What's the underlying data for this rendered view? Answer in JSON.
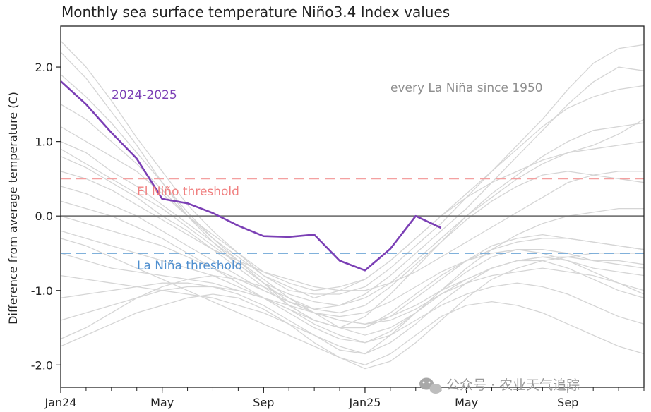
{
  "chart_data": {
    "type": "line",
    "title": "Monthly sea surface temperature Niño3.4 Index values",
    "ylabel": "Difference from average temperature (C)",
    "xlabel": "",
    "x_ticks": [
      "Jan24",
      "May",
      "Sep",
      "Jan25",
      "May",
      "Sep"
    ],
    "x_tick_months": [
      0,
      4,
      8,
      12,
      16,
      20
    ],
    "xlim": [
      0,
      23
    ],
    "ylim": [
      -2.3,
      2.55
    ],
    "y_ticks": [
      2.0,
      1.0,
      0.0,
      -1.0,
      -2.0
    ],
    "y_tick_labels": [
      "2.0",
      "1.0",
      "0.0",
      "-1.0",
      "-2.0"
    ],
    "grid": false,
    "zero_line": {
      "value": 0.0,
      "color": "#7a7a7a"
    },
    "thresholds": [
      {
        "name": "El Niño threshold",
        "value": 0.5,
        "color": "#f4a0a0",
        "text_color": "#f08080"
      },
      {
        "name": "La Niña threshold",
        "value": -0.5,
        "color": "#6fa6d6",
        "text_color": "#4f8fcf"
      }
    ],
    "highlight_series": {
      "name": "2024-2025",
      "color": "#7b3fb5",
      "x": [
        0,
        1,
        2,
        3,
        4,
        5,
        6,
        7,
        8,
        9,
        10,
        11,
        12,
        13,
        14,
        15
      ],
      "values": [
        1.81,
        1.5,
        1.12,
        0.77,
        0.23,
        0.17,
        0.04,
        -0.13,
        -0.27,
        -0.28,
        -0.25,
        -0.6,
        -0.73,
        -0.44,
        0.0,
        -0.16
      ]
    },
    "background_series_label": "every La Niña since 1950",
    "background_series_color": "#d5d5d5",
    "background_series": [
      [
        2.35,
        2.0,
        1.55,
        1.05,
        0.6,
        0.15,
        -0.2,
        -0.5,
        -0.8,
        -1.0,
        -1.05,
        -1.05,
        -0.95,
        -0.7,
        -0.4,
        -0.1,
        0.25,
        0.6,
        0.95,
        1.3,
        1.7,
        2.05,
        2.25,
        2.3
      ],
      [
        2.2,
        1.85,
        1.4,
        0.95,
        0.45,
        0.0,
        -0.35,
        -0.65,
        -0.9,
        -1.15,
        -1.25,
        -1.2,
        -1.05,
        -0.8,
        -0.5,
        -0.2,
        0.1,
        0.45,
        0.8,
        1.15,
        1.5,
        1.8,
        2.0,
        1.95
      ],
      [
        1.9,
        1.6,
        1.25,
        0.85,
        0.45,
        0.05,
        -0.3,
        -0.55,
        -0.8,
        -0.95,
        -1.1,
        -1.0,
        -0.85,
        -0.6,
        -0.3,
        0.0,
        0.3,
        0.6,
        0.9,
        1.2,
        1.45,
        1.6,
        1.7,
        1.75
      ],
      [
        1.5,
        1.3,
        1.0,
        0.7,
        0.35,
        0.0,
        -0.3,
        -0.6,
        -0.9,
        -1.2,
        -1.4,
        -1.5,
        -1.35,
        -1.05,
        -0.7,
        -0.35,
        0.0,
        0.3,
        0.55,
        0.8,
        1.0,
        1.15,
        1.2,
        1.25
      ],
      [
        1.2,
        1.0,
        0.8,
        0.6,
        0.3,
        0.0,
        -0.25,
        -0.5,
        -0.75,
        -0.9,
        -1.0,
        -0.95,
        -0.85,
        -0.6,
        -0.3,
        0.0,
        0.25,
        0.45,
        0.6,
        0.75,
        0.85,
        0.9,
        0.95,
        1.0
      ],
      [
        1.0,
        0.85,
        0.6,
        0.4,
        0.15,
        -0.1,
        -0.35,
        -0.6,
        -0.85,
        -1.1,
        -1.25,
        -1.3,
        -1.2,
        -0.95,
        -0.65,
        -0.35,
        -0.05,
        0.2,
        0.4,
        0.55,
        0.6,
        0.55,
        0.5,
        0.45
      ],
      [
        0.8,
        0.65,
        0.45,
        0.25,
        0.0,
        -0.2,
        -0.45,
        -0.7,
        -0.95,
        -1.2,
        -1.4,
        -1.5,
        -1.5,
        -1.3,
        -1.05,
        -0.8,
        -0.6,
        -0.45,
        -0.35,
        -0.3,
        -0.3,
        -0.35,
        -0.4,
        -0.45
      ],
      [
        0.6,
        0.5,
        0.35,
        0.15,
        -0.05,
        -0.25,
        -0.45,
        -0.6,
        -0.75,
        -0.85,
        -0.95,
        -1.0,
        -1.0,
        -0.9,
        -0.75,
        -0.55,
        -0.35,
        -0.15,
        0.05,
        0.25,
        0.45,
        0.55,
        0.6,
        0.6
      ],
      [
        0.4,
        0.3,
        0.15,
        0.0,
        -0.2,
        -0.4,
        -0.6,
        -0.8,
        -1.0,
        -1.15,
        -1.3,
        -1.4,
        -1.45,
        -1.35,
        -1.2,
        -1.0,
        -0.85,
        -0.7,
        -0.6,
        -0.55,
        -0.6,
        -0.7,
        -0.75,
        -0.8
      ],
      [
        0.2,
        0.1,
        0.0,
        -0.15,
        -0.3,
        -0.5,
        -0.7,
        -0.9,
        -1.1,
        -1.3,
        -1.5,
        -1.65,
        -1.7,
        -1.55,
        -1.3,
        -1.0,
        -0.7,
        -0.45,
        -0.25,
        -0.1,
        0.0,
        0.05,
        0.1,
        0.1
      ],
      [
        0.0,
        -0.1,
        -0.2,
        -0.3,
        -0.4,
        -0.55,
        -0.7,
        -0.85,
        -1.0,
        -1.15,
        -1.3,
        -1.4,
        -1.45,
        -1.4,
        -1.25,
        -1.05,
        -0.9,
        -0.8,
        -0.75,
        -0.7,
        -0.75,
        -0.8,
        -0.9,
        -1.0
      ],
      [
        -0.2,
        -0.3,
        -0.4,
        -0.5,
        -0.6,
        -0.7,
        -0.8,
        -0.95,
        -1.1,
        -1.25,
        -1.4,
        -1.5,
        -1.5,
        -1.35,
        -1.1,
        -0.85,
        -0.6,
        -0.4,
        -0.3,
        -0.25,
        -0.3,
        -0.35,
        -0.4,
        -0.45
      ],
      [
        -0.5,
        -0.6,
        -0.7,
        -0.75,
        -0.8,
        -0.85,
        -0.9,
        -1.0,
        -1.1,
        -1.2,
        -1.3,
        -1.35,
        -1.3,
        -1.15,
        -0.95,
        -0.75,
        -0.6,
        -0.5,
        -0.45,
        -0.5,
        -0.6,
        -0.75,
        -0.9,
        -1.05
      ],
      [
        -0.8,
        -0.85,
        -0.9,
        -0.95,
        -1.0,
        -1.05,
        -1.1,
        -1.2,
        -1.3,
        -1.45,
        -1.6,
        -1.75,
        -1.85,
        -1.7,
        -1.45,
        -1.15,
        -0.9,
        -0.7,
        -0.6,
        -0.6,
        -0.7,
        -0.85,
        -1.0,
        -1.1
      ],
      [
        -1.1,
        -1.05,
        -1.0,
        -0.95,
        -0.9,
        -0.9,
        -0.95,
        -1.05,
        -1.2,
        -1.4,
        -1.6,
        -1.8,
        -1.85,
        -1.6,
        -1.3,
        -1.0,
        -0.75,
        -0.55,
        -0.45,
        -0.45,
        -0.5,
        -0.6,
        -0.65,
        -0.7
      ],
      [
        -1.4,
        -1.3,
        -1.2,
        -1.1,
        -1.0,
        -0.95,
        -0.95,
        -1.0,
        -1.1,
        -1.25,
        -1.45,
        -1.6,
        -1.7,
        -1.6,
        -1.4,
        -1.2,
        -1.05,
        -0.95,
        -0.9,
        -0.95,
        -1.05,
        -1.2,
        -1.35,
        -1.45
      ],
      [
        -1.65,
        -1.5,
        -1.3,
        -1.1,
        -0.95,
        -0.85,
        -0.8,
        -0.85,
        -0.95,
        -1.1,
        -1.3,
        -1.5,
        -1.6,
        -1.5,
        -1.3,
        -1.05,
        -0.85,
        -0.7,
        -0.6,
        -0.55,
        -0.55,
        -0.6,
        -0.6,
        -0.65
      ],
      [
        -1.75,
        -1.6,
        -1.45,
        -1.3,
        -1.2,
        -1.1,
        -1.05,
        -1.1,
        -1.25,
        -1.45,
        -1.7,
        -1.9,
        -2.0,
        -1.85,
        -1.6,
        -1.35,
        -1.2,
        -1.15,
        -1.2,
        -1.3,
        -1.45,
        -1.6,
        -1.75,
        -1.85
      ],
      [
        0.9,
        0.7,
        0.5,
        0.3,
        0.1,
        -0.15,
        -0.4,
        -0.65,
        -0.9,
        -1.05,
        -1.15,
        -1.2,
        -1.1,
        -0.9,
        -0.6,
        -0.3,
        0.0,
        0.25,
        0.5,
        0.7,
        0.85,
        0.95,
        1.1,
        1.3
      ],
      [
        -0.3,
        -0.4,
        -0.55,
        -0.7,
        -0.85,
        -1.0,
        -1.15,
        -1.3,
        -1.45,
        -1.6,
        -1.75,
        -1.9,
        -2.05,
        -1.95,
        -1.7,
        -1.4,
        -1.1,
        -0.85,
        -0.7,
        -0.6,
        -0.55,
        -0.5,
        -0.5,
        -0.5
      ]
    ]
  },
  "watermark": {
    "text": "公众号 · 农业天气追踪",
    "icon": "wechat-icon"
  }
}
